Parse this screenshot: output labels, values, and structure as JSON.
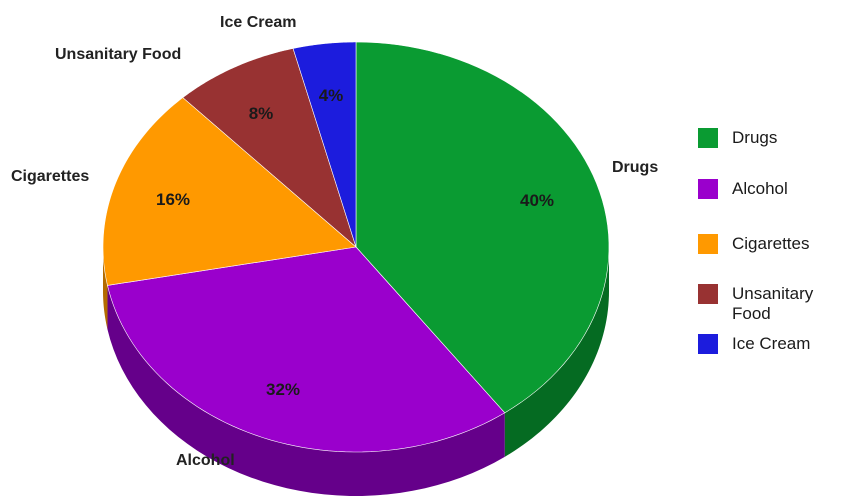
{
  "chart_data": {
    "type": "pie",
    "three_d": true,
    "categories": [
      "Drugs",
      "Alcohol",
      "Cigarettes",
      "Unsanitary Food",
      "Ice Cream"
    ],
    "values": [
      40,
      32,
      16,
      8,
      4
    ],
    "data_labels": [
      "40%",
      "32%",
      "16%",
      "8%",
      "4%"
    ],
    "colors": [
      "#0a9b32",
      "#9a00cc",
      "#ff9900",
      "#983232",
      "#1c1cdd"
    ],
    "side_colors": [
      "#056b22",
      "#65008a",
      "#b36b00",
      "#5e1e1e",
      "#0f0f8a"
    ],
    "category_labels": {
      "drugs": "Drugs",
      "alcohol": "Alcohol",
      "cigarettes": "Cigarettes",
      "unsanitary_food": "Unsanitary Food",
      "ice_cream": "Ice Cream"
    },
    "legend": {
      "position": "right",
      "items": [
        "Drugs",
        "Alcohol",
        "Cigarettes",
        "Unsanitary Food",
        "Ice Cream"
      ]
    }
  }
}
